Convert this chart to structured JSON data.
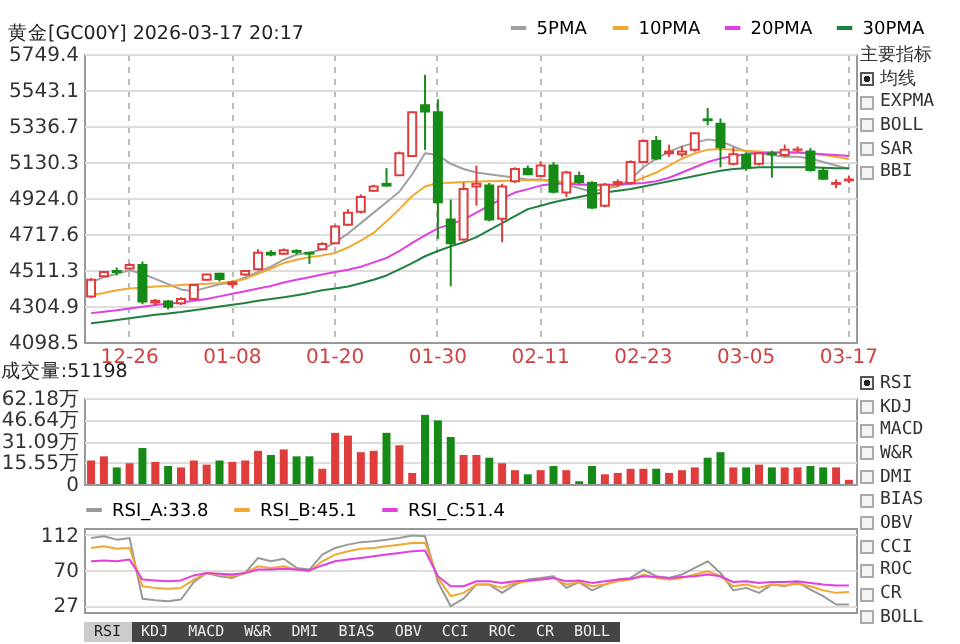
{
  "chart_data": [
    {
      "type": "candlestick",
      "title": "黄金[GC00Y] 2026-03-17 20:17",
      "categories": [
        null,
        null,
        null,
        "12-26",
        null,
        null,
        null,
        null,
        null,
        null,
        null,
        "01-08",
        null,
        null,
        null,
        null,
        null,
        null,
        null,
        "01-20",
        null,
        null,
        null,
        null,
        null,
        null,
        null,
        "01-30",
        null,
        null,
        null,
        null,
        null,
        null,
        null,
        "02-11",
        null,
        null,
        null,
        null,
        null,
        null,
        null,
        "02-23",
        null,
        null,
        null,
        null,
        null,
        null,
        null,
        "03-05",
        null,
        null,
        null,
        null,
        null,
        null,
        null,
        "03-17"
      ],
      "ohlc": [
        [
          4360,
          4465,
          4350,
          4455
        ],
        [
          4475,
          4505,
          4470,
          4500
        ],
        [
          4505,
          4525,
          4480,
          4500
        ],
        [
          4520,
          4550,
          4515,
          4540
        ],
        [
          4540,
          4560,
          4315,
          4330
        ],
        [
          4325,
          4345,
          4310,
          4335
        ],
        [
          4330,
          4340,
          4285,
          4300
        ],
        [
          4320,
          4355,
          4310,
          4345
        ],
        [
          4345,
          4430,
          4340,
          4425
        ],
        [
          4455,
          4490,
          4450,
          4485
        ],
        [
          4490,
          4495,
          4445,
          4460
        ],
        [
          4430,
          4450,
          4410,
          4440
        ],
        [
          4485,
          4510,
          4480,
          4505
        ],
        [
          4515,
          4630,
          4510,
          4610
        ],
        [
          4610,
          4625,
          4590,
          4600
        ],
        [
          4605,
          4635,
          4600,
          4625
        ],
        [
          4620,
          4630,
          4600,
          4615
        ],
        [
          4610,
          4615,
          4545,
          4605
        ],
        [
          4630,
          4670,
          4625,
          4660
        ],
        [
          4665,
          4770,
          4660,
          4760
        ],
        [
          4770,
          4860,
          4765,
          4840
        ],
        [
          4845,
          4945,
          4835,
          4930
        ],
        [
          4965,
          5000,
          4960,
          4990
        ],
        [
          5005,
          5095,
          4990,
          4995
        ],
        [
          5055,
          5190,
          5050,
          5180
        ],
        [
          5165,
          5420,
          5160,
          5415
        ],
        [
          5455,
          5630,
          5200,
          5420
        ],
        [
          5415,
          5490,
          4690,
          4900
        ],
        [
          4800,
          4915,
          4418,
          4665
        ],
        [
          4686,
          5012,
          4680,
          4975
        ],
        [
          4990,
          5110,
          4880,
          5005
        ],
        [
          4995,
          5010,
          4790,
          4800
        ],
        [
          4805,
          5005,
          4670,
          4990
        ],
        [
          5020,
          5100,
          5010,
          5090
        ],
        [
          5090,
          5110,
          5055,
          5060
        ],
        [
          5050,
          5135,
          5045,
          5110
        ],
        [
          5110,
          5130,
          4950,
          4960
        ],
        [
          4955,
          5080,
          4930,
          5070
        ],
        [
          5050,
          5075,
          5005,
          5015
        ],
        [
          5010,
          5020,
          4860,
          4870
        ],
        [
          4880,
          5010,
          4870,
          5000
        ],
        [
          5005,
          5030,
          4990,
          5015
        ],
        [
          5010,
          5140,
          5000,
          5130
        ],
        [
          5130,
          5260,
          5125,
          5250
        ],
        [
          5250,
          5280,
          5140,
          5150
        ],
        [
          5180,
          5230,
          5160,
          5190
        ],
        [
          5175,
          5220,
          5160,
          5190
        ],
        [
          5200,
          5300,
          5190,
          5295
        ],
        [
          5375,
          5440,
          5340,
          5370
        ],
        [
          5350,
          5380,
          5100,
          5215
        ],
        [
          5120,
          5215,
          5110,
          5175
        ],
        [
          5170,
          5185,
          5080,
          5100
        ],
        [
          5120,
          5185,
          5110,
          5180
        ],
        [
          5180,
          5195,
          5040,
          5175
        ],
        [
          5170,
          5230,
          5160,
          5200
        ],
        [
          5200,
          5220,
          5185,
          5202
        ],
        [
          5190,
          5210,
          5075,
          5085
        ],
        [
          5080,
          5100,
          5030,
          5035
        ],
        [
          5005,
          5030,
          4980,
          5010
        ],
        [
          5025,
          5050,
          5010,
          5030
        ]
      ],
      "series": [
        {
          "name": "5PMA",
          "color": "#a0a0a0",
          "type": "line",
          "values": [
            4440,
            4470,
            4490,
            4510,
            4490,
            4460,
            4430,
            4400,
            4390,
            4410,
            4430,
            4440,
            4470,
            4500,
            4530,
            4570,
            4600,
            4610,
            4630,
            4670,
            4720,
            4780,
            4840,
            4900,
            4960,
            5060,
            5180,
            5170,
            5120,
            5090,
            5070,
            5060,
            5050,
            5040,
            5030,
            5030,
            5020,
            5000,
            4980,
            4960,
            4980,
            4990,
            5030,
            5100,
            5150,
            5190,
            5220,
            5240,
            5260,
            5250,
            5220,
            5190,
            5180,
            5170,
            5160,
            5160,
            5150,
            5130,
            5110,
            5090
          ]
        },
        {
          "name": "10PMA",
          "color": "#f0a830",
          "type": "line",
          "values": [
            4367,
            4380,
            4395,
            4405,
            4410,
            4417,
            4420,
            4425,
            4430,
            4432,
            4436,
            4445,
            4460,
            4490,
            4520,
            4551,
            4570,
            4585,
            4595,
            4609,
            4640,
            4680,
            4724,
            4790,
            4860,
            4935,
            4990,
            5010,
            5012,
            5015,
            5018,
            5020,
            5022,
            5025,
            5025,
            5025,
            5022,
            5015,
            5005,
            4995,
            4993,
            4995,
            5010,
            5040,
            5070,
            5110,
            5150,
            5180,
            5200,
            5205,
            5200,
            5195,
            5190,
            5185,
            5185,
            5185,
            5180,
            5170,
            5160,
            5147
          ]
        },
        {
          "name": "20PMA",
          "color": "#e040e0",
          "type": "line",
          "values": [
            4264,
            4272,
            4280,
            4290,
            4300,
            4310,
            4318,
            4325,
            4335,
            4345,
            4360,
            4375,
            4390,
            4405,
            4420,
            4440,
            4455,
            4470,
            4485,
            4500,
            4513,
            4530,
            4555,
            4580,
            4620,
            4667,
            4710,
            4750,
            4774,
            4800,
            4840,
            4880,
            4920,
            4955,
            4975,
            4995,
            5005,
            5005,
            5000,
            5000,
            5000,
            5000,
            5005,
            5010,
            5020,
            5040,
            5070,
            5100,
            5130,
            5150,
            5165,
            5175,
            5180,
            5185,
            5185,
            5185,
            5180,
            5175,
            5170,
            5165
          ]
        },
        {
          "name": "30PMA",
          "color": "#208040",
          "type": "line",
          "values": [
            4206,
            4215,
            4225,
            4235,
            4245,
            4255,
            4262,
            4270,
            4280,
            4290,
            4302,
            4312,
            4322,
            4335,
            4345,
            4355,
            4367,
            4380,
            4395,
            4405,
            4417,
            4435,
            4455,
            4480,
            4515,
            4551,
            4590,
            4620,
            4647,
            4670,
            4700,
            4740,
            4780,
            4820,
            4860,
            4880,
            4900,
            4915,
            4930,
            4945,
            4955,
            4965,
            4975,
            4990,
            5005,
            5020,
            5035,
            5050,
            5065,
            5080,
            5090,
            5095,
            5100,
            5100,
            5100,
            5100,
            5100,
            5098,
            5095,
            5095
          ]
        }
      ],
      "ylim": [
        4098.5,
        5749.4
      ],
      "yticks": [
        4098.5,
        4304.9,
        4511.3,
        4717.6,
        {
          "value": 4924,
          "label": "4924.0"
        },
        5130.3,
        5336.7,
        5543.1,
        5749.4
      ],
      "grid": true,
      "legend": "top right"
    },
    {
      "type": "bar",
      "title": "成交量:51198",
      "categories": [
        null,
        null,
        null,
        null,
        null,
        null,
        null,
        null,
        null,
        null,
        null,
        null,
        null,
        null,
        null,
        null,
        null,
        null,
        null,
        null,
        null,
        null,
        null,
        null,
        null,
        null,
        null,
        null,
        null,
        null,
        null,
        null,
        null,
        null,
        null,
        null,
        null,
        null,
        null,
        null,
        null,
        null,
        null,
        null,
        null,
        null,
        null,
        null,
        null,
        null,
        null,
        null,
        null,
        null,
        null,
        null,
        null,
        null,
        null,
        null
      ],
      "values": [
        17,
        20,
        12,
        15,
        26,
        16,
        13,
        12,
        17,
        14,
        17,
        16,
        17,
        24,
        21,
        25,
        20,
        20,
        11,
        37,
        35,
        23,
        24,
        37,
        28,
        8,
        50,
        46,
        34,
        21,
        21,
        19,
        15,
        10,
        7,
        10,
        13,
        10,
        2,
        13,
        7,
        8,
        11,
        11,
        11,
        8,
        10,
        12,
        19,
        23,
        12,
        12,
        14,
        12,
        12,
        12,
        13,
        12,
        12,
        3
      ],
      "colors": [
        "#e03c3c",
        "#e03c3c",
        "#168a16",
        "#e03c3c",
        "#168a16",
        "#e03c3c",
        "#168a16",
        "#e03c3c",
        "#e03c3c",
        "#e03c3c",
        "#168a16",
        "#e03c3c",
        "#e03c3c",
        "#e03c3c",
        "#168a16",
        "#e03c3c",
        "#168a16",
        "#168a16",
        "#e03c3c",
        "#e03c3c",
        "#e03c3c",
        "#e03c3c",
        "#e03c3c",
        "#168a16",
        "#e03c3c",
        "#e03c3c",
        "#168a16",
        "#168a16",
        "#168a16",
        "#e03c3c",
        "#e03c3c",
        "#168a16",
        "#e03c3c",
        "#e03c3c",
        "#168a16",
        "#e03c3c",
        "#168a16",
        "#e03c3c",
        "#168a16",
        "#168a16",
        "#e03c3c",
        "#e03c3c",
        "#e03c3c",
        "#e03c3c",
        "#168a16",
        "#e03c3c",
        "#e03c3c",
        "#e03c3c",
        "#168a16",
        "#168a16",
        "#e03c3c",
        "#168a16",
        "#e03c3c",
        "#168a16",
        "#e03c3c",
        "#e03c3c",
        "#168a16",
        "#168a16",
        "#e03c3c",
        "#e03c3c"
      ],
      "ylim": [
        0,
        62.18
      ],
      "yticks": [
        0,
        {
          "value": 15.55,
          "label": "15.55万"
        },
        {
          "value": 31.09,
          "label": "31.09万"
        },
        {
          "value": 46.64,
          "label": "46.64万"
        },
        {
          "value": 62.18,
          "label": "62.18万"
        }
      ],
      "grid": "y"
    },
    {
      "type": "line",
      "categories": [
        null,
        null,
        null,
        null,
        null,
        null,
        null,
        null,
        null,
        null,
        null,
        null,
        null,
        null,
        null,
        null,
        null,
        null,
        null,
        null,
        null,
        null,
        null,
        null,
        null,
        null,
        null,
        null,
        null,
        null,
        null,
        null,
        null,
        null,
        null,
        null,
        null,
        null,
        null,
        null,
        null,
        null,
        null,
        null,
        null,
        null,
        null,
        null,
        null,
        null,
        null,
        null,
        null,
        null,
        null,
        null,
        null,
        null,
        null,
        null
      ],
      "series": [
        {
          "name": "RSI_A:33.8",
          "color": "#999999",
          "values": [
            108,
            110,
            106,
            108,
            35,
            33,
            32,
            34,
            55,
            66,
            62,
            60,
            66,
            84,
            80,
            83,
            72,
            70,
            88,
            96,
            100,
            103,
            104,
            106,
            108,
            111,
            110,
            55,
            26,
            35,
            52,
            52,
            42,
            52,
            58,
            60,
            62,
            48,
            55,
            45,
            52,
            58,
            60,
            70,
            62,
            60,
            64,
            72,
            80,
            66,
            45,
            48,
            42,
            52,
            50,
            55,
            46,
            38,
            28,
            28
          ]
        },
        {
          "name": "RSI_B:45.1",
          "color": "#f0a830",
          "values": [
            96,
            98,
            95,
            96,
            50,
            48,
            47,
            48,
            58,
            66,
            64,
            62,
            66,
            74,
            72,
            74,
            70,
            68,
            80,
            88,
            92,
            95,
            96,
            98,
            100,
            102,
            102,
            60,
            38,
            42,
            52,
            52,
            48,
            54,
            56,
            58,
            60,
            52,
            55,
            50,
            52,
            56,
            58,
            64,
            60,
            58,
            60,
            64,
            68,
            62,
            50,
            52,
            48,
            52,
            51,
            53,
            50,
            45,
            42,
            43
          ]
        },
        {
          "name": "RSI_C:51.4",
          "color": "#e040e0",
          "values": [
            80,
            81,
            80,
            82,
            58,
            57,
            56,
            57,
            63,
            66,
            65,
            64,
            66,
            70,
            70,
            71,
            70,
            69,
            75,
            80,
            82,
            84,
            86,
            88,
            90,
            92,
            93,
            62,
            50,
            50,
            56,
            56,
            54,
            56,
            57,
            58,
            60,
            56,
            57,
            54,
            56,
            58,
            59,
            62,
            61,
            60,
            61,
            62,
            64,
            62,
            55,
            56,
            54,
            55,
            55,
            56,
            54,
            52,
            51,
            51
          ]
        }
      ],
      "ylim": [
        19,
        120
      ],
      "yticks": [
        27,
        70,
        112
      ],
      "grid": "y",
      "legend": "top left"
    },
    {
      "type": "other",
      "title": "主要指标",
      "annotations": [
        "均线",
        "EXPMA",
        "BOLL",
        "SAR",
        "BBI"
      ]
    },
    {
      "type": "other",
      "annotations": [
        "RSI",
        "KDJ",
        "MACD",
        "W&R",
        "DMI",
        "BIAS",
        "OBV",
        "CCI",
        "ROC",
        "CR",
        "BOLL"
      ]
    },
    {
      "type": "other",
      "annotations": [
        "RSI",
        "KDJ",
        "MACD",
        "W&R",
        "DMI",
        "BIAS",
        "OBV",
        "CCI",
        "ROC",
        "CR",
        "BOLL"
      ]
    }
  ]
}
